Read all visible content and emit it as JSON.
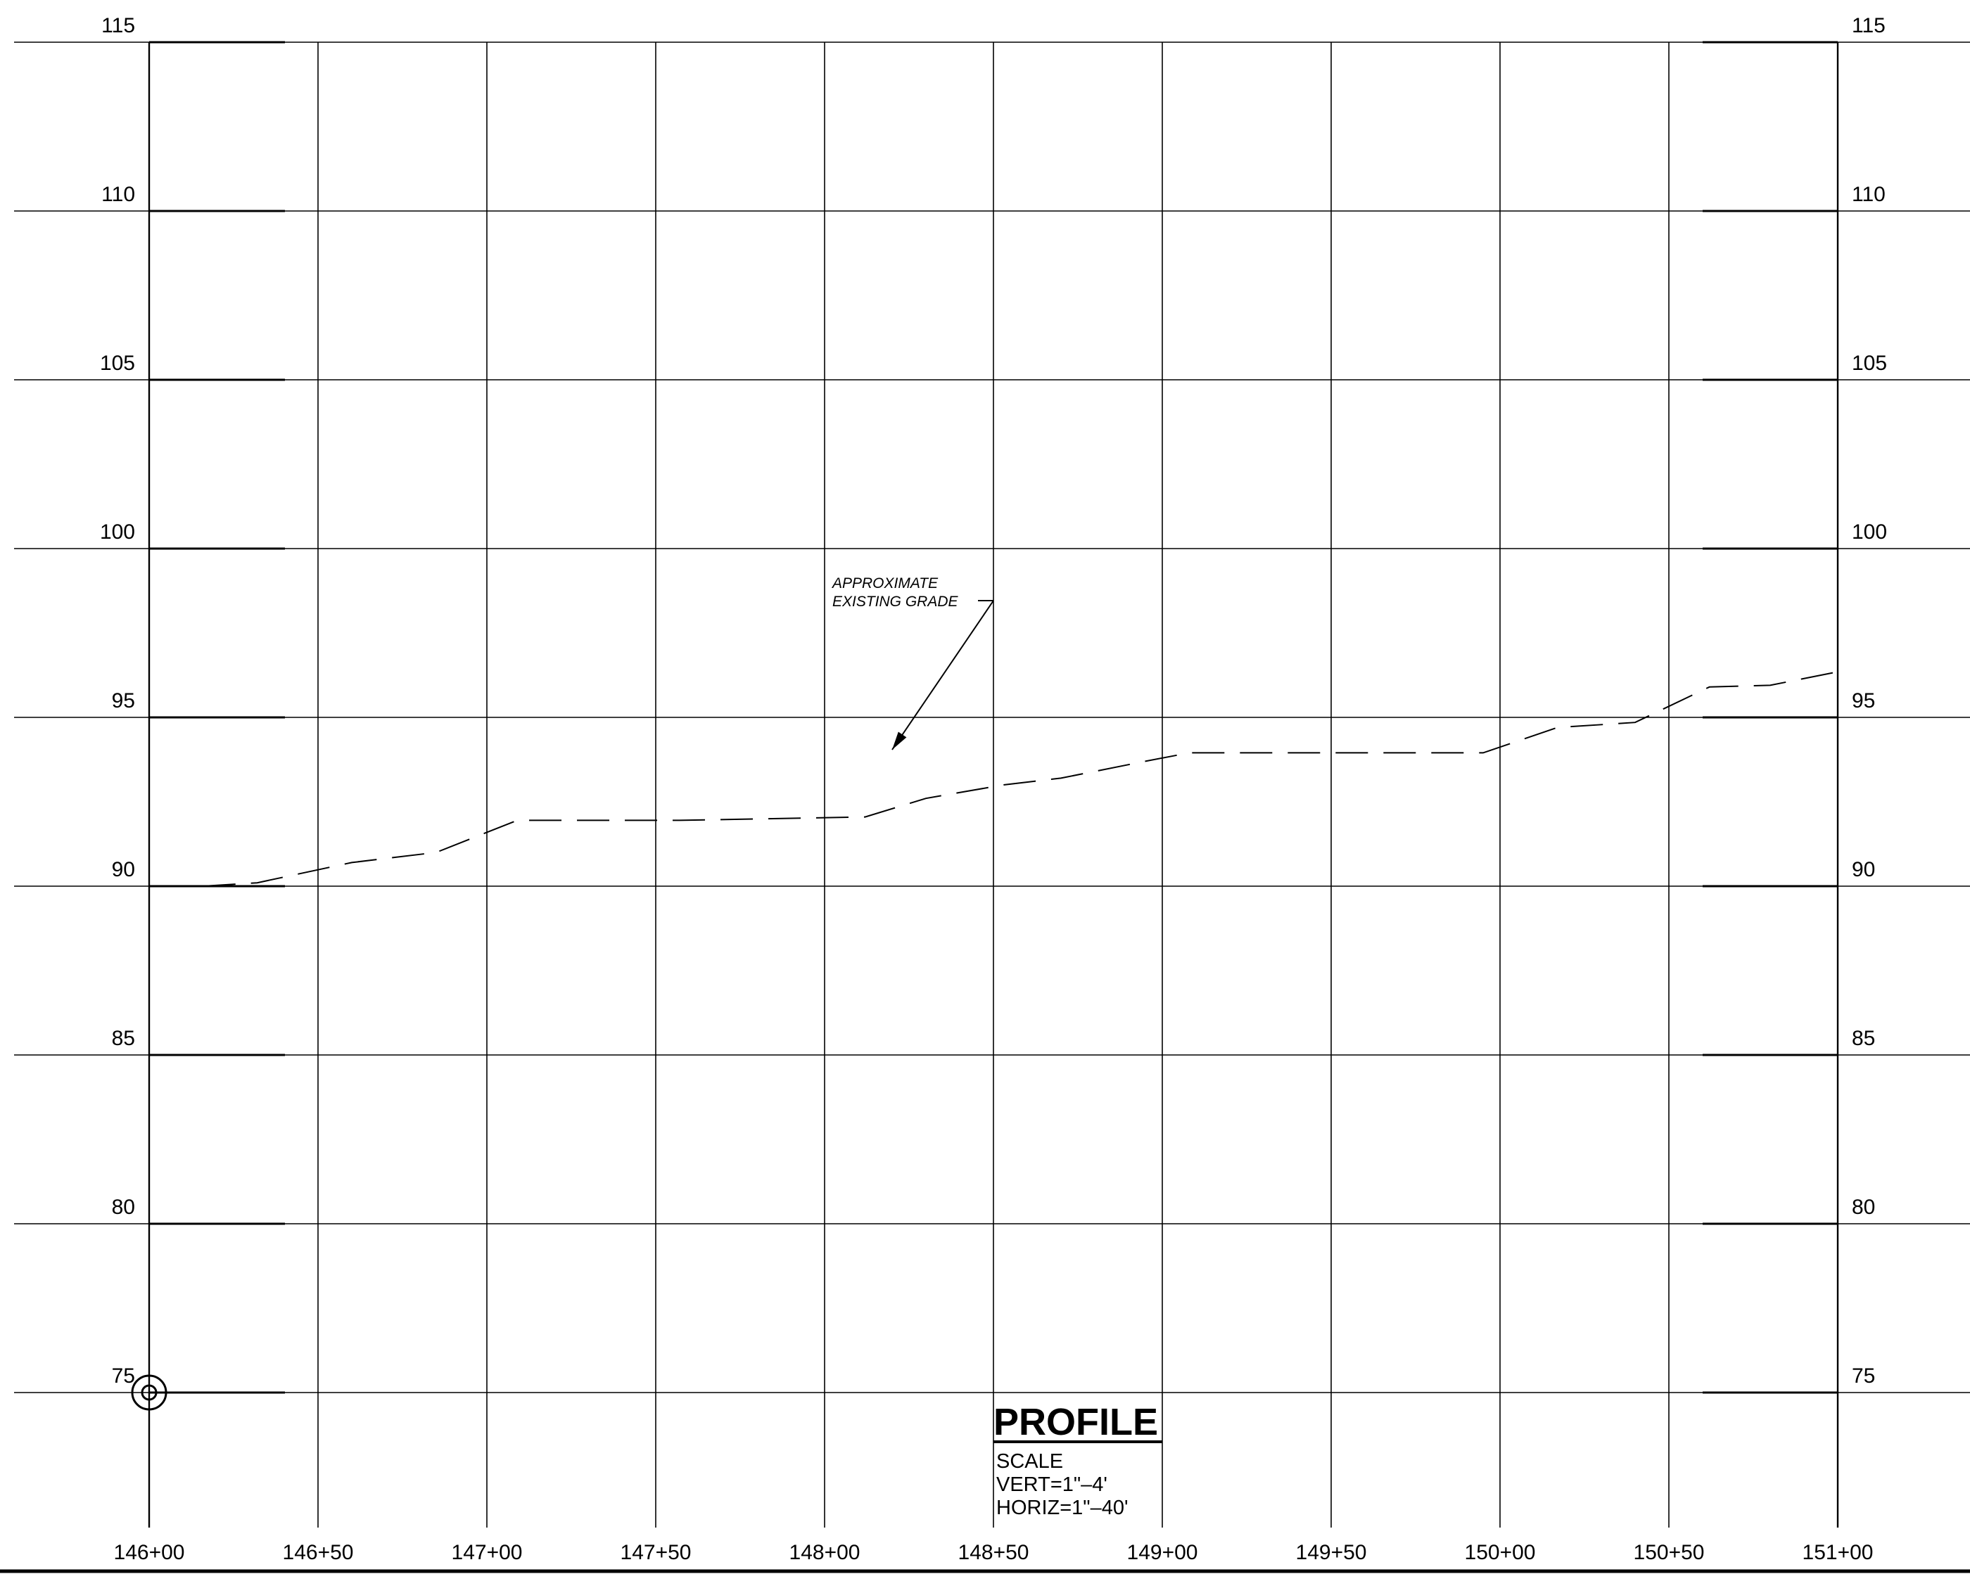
{
  "chart_data": {
    "type": "line",
    "title": "PROFILE",
    "scale_heading": "SCALE",
    "scale_vert": "VERT=1\"–4'",
    "scale_horiz": "HORIZ=1\"–40'",
    "y_ticks": [
      115,
      110,
      105,
      100,
      95,
      90,
      85,
      80,
      75
    ],
    "ylim": [
      71,
      115
    ],
    "x_tick_labels": [
      "146+00",
      "146+50",
      "147+00",
      "147+50",
      "148+00",
      "148+50",
      "149+00",
      "149+50",
      "150+00",
      "150+50",
      "151+00"
    ],
    "xlim": [
      14600,
      15100
    ],
    "grid": true,
    "series": [
      {
        "x": [
          14616,
          14632,
          14660,
          14685,
          14709,
          14757,
          14812,
          14830,
          14853,
          14870,
          14895,
          14908,
          14916,
          14950,
          14987,
          14995,
          15017,
          15040,
          15062,
          15080,
          15100
        ],
        "y": [
          90,
          90.1,
          90.7,
          91.0,
          91.95,
          91.95,
          92.05,
          92.6,
          93.0,
          93.2,
          93.7,
          93.95,
          93.95,
          93.95,
          93.95,
          93.95,
          94.7,
          94.85,
          95.9,
          95.95,
          96.35
        ],
        "style": "dashed",
        "color": "#000000"
      }
    ],
    "annotation": {
      "lines": [
        "APPROXIMATE",
        "EXISTING GRADE"
      ],
      "points_to": {
        "x": 14820,
        "y": 94
      }
    },
    "benchmark_symbol": {
      "x": 14600,
      "y": 75,
      "icon": "benchmark-circle-icon"
    }
  }
}
